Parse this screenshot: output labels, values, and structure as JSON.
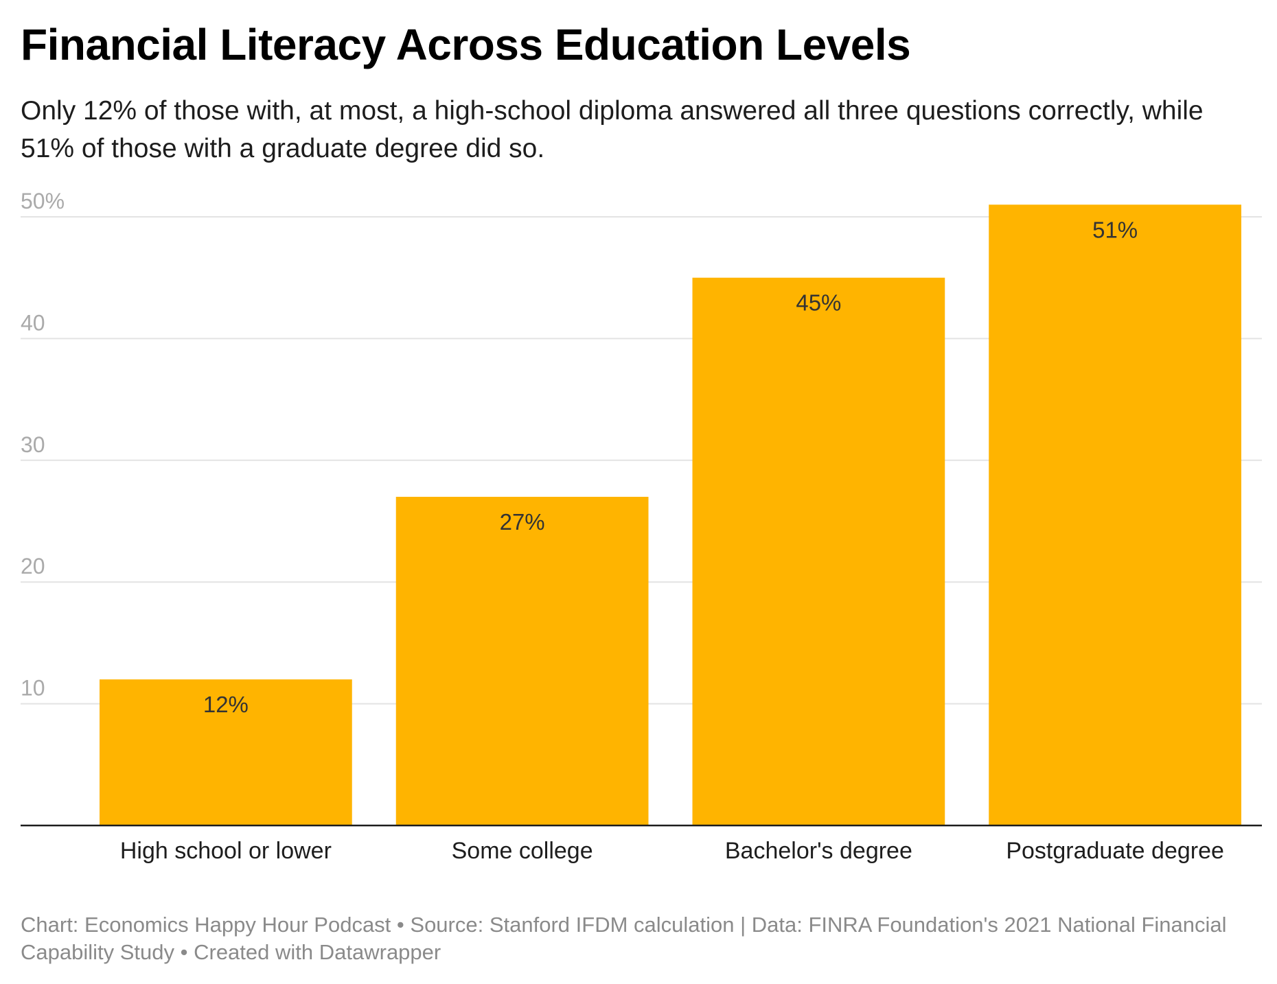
{
  "header": {
    "title": "Financial Literacy Across Education Levels",
    "subtitle": "Only 12% of those with, at most, a high-school diploma answered all three questions correctly, while 51% of those with a graduate degree did so."
  },
  "footer": {
    "chart_credit": "Chart: Economics Happy Hour Podcast",
    "source": "Source: Stanford IFDM calculation | Data: FINRA Foundation's 2021 National Financial Capability Study",
    "created_with": "Created with Datawrapper",
    "separator": " • "
  },
  "colors": {
    "bar": "#FFB400",
    "gridline": "#e3e3e3",
    "baseline": "#1d1d1d"
  },
  "chart_data": {
    "type": "bar",
    "title": "Financial Literacy Across Education Levels",
    "categories": [
      "High school or lower",
      "Some college",
      "Bachelor's degree",
      "Postgraduate degree"
    ],
    "values": [
      12,
      27,
      45,
      51
    ],
    "data_labels": [
      "12%",
      "27%",
      "45%",
      "51%"
    ],
    "yticks": [
      10,
      20,
      30,
      40,
      50
    ],
    "ytick_labels": [
      "10",
      "20",
      "30",
      "40",
      "50%"
    ],
    "ylim": [
      0,
      50
    ],
    "xlabel": "",
    "ylabel": "",
    "grid": true,
    "legend": "none"
  }
}
